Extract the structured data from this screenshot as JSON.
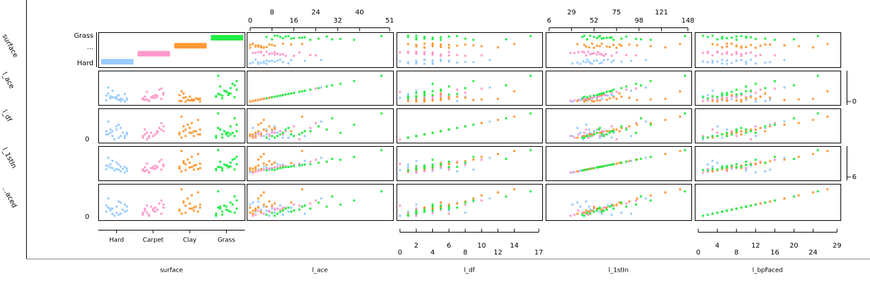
{
  "chart_data": {
    "type": "scatter_matrix",
    "variables": [
      "surface",
      "l_ace",
      "l_df",
      "l_1stIn",
      "l_bpFaced"
    ],
    "row_labels": [
      "surface",
      "l_ace",
      "l_df",
      "l_1stIn",
      "...aced"
    ],
    "surface_ellipsis": "...",
    "series": [
      {
        "name": "Hard",
        "color": "#99ccff",
        "l_ace": [
          2,
          5,
          8,
          3,
          12,
          6,
          0,
          9,
          15,
          4,
          7,
          11,
          1,
          20,
          6,
          3,
          10,
          14,
          5,
          26
        ],
        "l_df": [
          3,
          2,
          5,
          4,
          1,
          6,
          2,
          8,
          3,
          4,
          0,
          5,
          7,
          2,
          3,
          9,
          4,
          1,
          6,
          11
        ],
        "l_1stIn": [
          45,
          60,
          52,
          38,
          70,
          55,
          30,
          80,
          62,
          48,
          41,
          66,
          35,
          90,
          50,
          44,
          72,
          58,
          47,
          105
        ],
        "l_bpFaced": [
          5,
          3,
          8,
          10,
          2,
          6,
          12,
          4,
          9,
          7,
          1,
          11,
          14,
          3,
          6,
          15,
          8,
          5,
          10,
          18
        ]
      },
      {
        "name": "Carpet",
        "color": "#ff99cc",
        "l_ace": [
          4,
          9,
          2,
          13,
          7,
          18,
          5,
          10,
          3,
          22,
          8,
          6,
          11,
          1,
          16,
          12,
          4,
          24,
          7,
          9
        ],
        "l_df": [
          2,
          4,
          1,
          5,
          3,
          0,
          6,
          2,
          3,
          7,
          4,
          1,
          5,
          2,
          8,
          3,
          4,
          10,
          2,
          6
        ],
        "l_1stIn": [
          40,
          55,
          32,
          62,
          48,
          75,
          44,
          58,
          36,
          85,
          52,
          46,
          60,
          28,
          70,
          64,
          42,
          95,
          50,
          56
        ],
        "l_bpFaced": [
          4,
          7,
          2,
          9,
          5,
          11,
          3,
          8,
          6,
          13,
          10,
          2,
          7,
          1,
          12,
          9,
          4,
          16,
          6,
          8
        ]
      },
      {
        "name": "Clay",
        "color": "#ff9933",
        "l_ace": [
          1,
          3,
          0,
          5,
          2,
          7,
          4,
          9,
          1,
          6,
          3,
          12,
          2,
          8,
          0,
          4,
          15,
          5,
          2,
          19
        ],
        "l_df": [
          3,
          5,
          2,
          6,
          4,
          8,
          3,
          7,
          1,
          5,
          9,
          4,
          2,
          6,
          3,
          10,
          5,
          12,
          4,
          14
        ],
        "l_1stIn": [
          50,
          65,
          42,
          75,
          58,
          88,
          47,
          80,
          35,
          68,
          96,
          60,
          44,
          72,
          52,
          110,
          78,
          125,
          55,
          140
        ],
        "l_bpFaced": [
          6,
          9,
          4,
          12,
          8,
          15,
          5,
          13,
          3,
          10,
          18,
          7,
          6,
          11,
          9,
          21,
          14,
          24,
          8,
          27
        ]
      },
      {
        "name": "Grass",
        "color": "#22ee44",
        "l_ace": [
          10,
          15,
          6,
          22,
          12,
          28,
          8,
          18,
          14,
          33,
          20,
          9,
          25,
          11,
          38,
          16,
          13,
          30,
          19,
          48
        ],
        "l_df": [
          2,
          3,
          1,
          5,
          4,
          6,
          2,
          3,
          7,
          4,
          5,
          1,
          8,
          3,
          9,
          2,
          6,
          13,
          4,
          16
        ],
        "l_1stIn": [
          48,
          60,
          40,
          72,
          55,
          85,
          45,
          65,
          58,
          95,
          70,
          42,
          80,
          52,
          110,
          62,
          57,
          100,
          68,
          145
        ],
        "l_bpFaced": [
          3,
          5,
          2,
          8,
          6,
          10,
          4,
          7,
          9,
          12,
          11,
          1,
          14,
          5,
          16,
          6,
          8,
          20,
          10,
          25
        ]
      }
    ],
    "axes": {
      "l_ace": {
        "lim": [
          0,
          51
        ],
        "ticks": [
          0,
          8,
          16,
          24,
          32,
          40,
          51
        ]
      },
      "l_df": {
        "lim": [
          0,
          17
        ],
        "ticks": [
          0,
          2,
          4,
          6,
          8,
          10,
          12,
          14,
          17
        ]
      },
      "l_1stIn": {
        "lim": [
          6,
          148
        ],
        "ticks": [
          6,
          29,
          52,
          75,
          98,
          121,
          148
        ]
      },
      "l_bpFaced": {
        "lim": [
          0,
          29
        ],
        "ticks": [
          0,
          4,
          8,
          12,
          16,
          20,
          24,
          29
        ]
      }
    }
  }
}
